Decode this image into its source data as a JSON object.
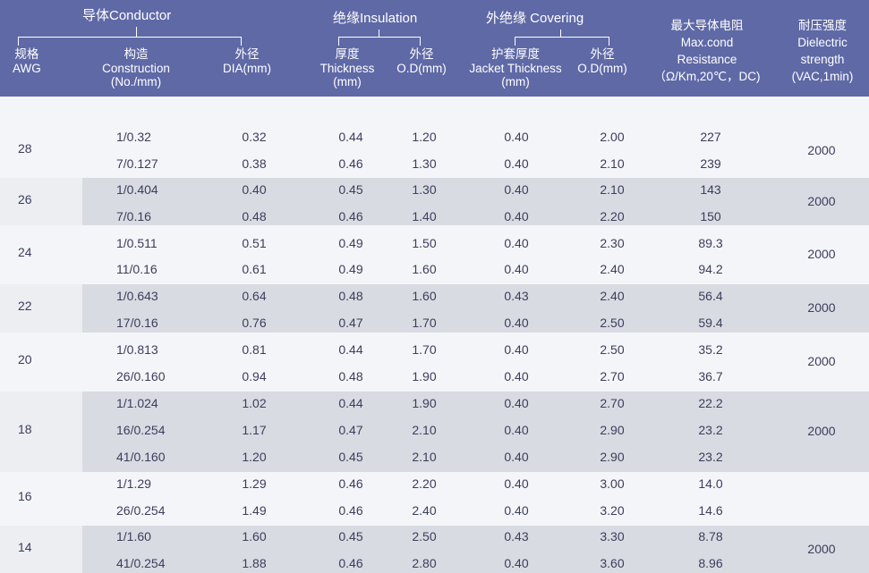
{
  "header": {
    "conductor": "导体Conductor",
    "insulation": "绝缘Insulation",
    "covering": "外绝缘 Covering",
    "awg_cn": "规格",
    "awg_en": "AWG",
    "construction_cn": "构造",
    "construction_en": "Construction",
    "construction_unit": "(No./mm)",
    "dia_cn": "外径",
    "dia_en": "DIA(mm)",
    "thickness_cn": "厚度",
    "thickness_en": "Thickness",
    "thickness_unit": "(mm)",
    "ins_od_cn": "外径",
    "ins_od_en": "O.D(mm)",
    "jacket_cn": "护套厚度",
    "jacket_en": "Jacket Thickness",
    "jacket_unit": "(mm)",
    "cov_od_cn": "外径",
    "cov_od_en": "O.D(mm)",
    "res_cn": "最大导体电阻",
    "res_en1": "Max.cond",
    "res_en2": "Resistance",
    "res_unit": "（Ω/Km,20℃，DC)",
    "die_cn": "耐压强度",
    "die_en1": "Dielectric",
    "die_en2": "strength",
    "die_unit": "(VAC,1min)"
  },
  "groups": [
    {
      "awg": "28",
      "dielectric": "2000",
      "rows": [
        {
          "construction": "1/0.32",
          "dia": "0.32",
          "thickness": "0.44",
          "ins_od": "1.20",
          "jacket": "0.40",
          "cov_od": "2.00",
          "resistance": "227"
        },
        {
          "construction": "7/0.127",
          "dia": "0.38",
          "thickness": "0.46",
          "ins_od": "1.30",
          "jacket": "0.40",
          "cov_od": "2.10",
          "resistance": "239"
        }
      ]
    },
    {
      "awg": "26",
      "dielectric": "2000",
      "rows": [
        {
          "construction": "1/0.404",
          "dia": "0.40",
          "thickness": "0.45",
          "ins_od": "1.30",
          "jacket": "0.40",
          "cov_od": "2.10",
          "resistance": "143"
        },
        {
          "construction": "7/0.16",
          "dia": "0.48",
          "thickness": "0.46",
          "ins_od": "1.40",
          "jacket": "0.40",
          "cov_od": "2.20",
          "resistance": "150"
        }
      ]
    },
    {
      "awg": "24",
      "dielectric": "2000",
      "rows": [
        {
          "construction": "1/0.511",
          "dia": "0.51",
          "thickness": "0.49",
          "ins_od": "1.50",
          "jacket": "0.40",
          "cov_od": "2.30",
          "resistance": "89.3"
        },
        {
          "construction": "11/0.16",
          "dia": "0.61",
          "thickness": "0.49",
          "ins_od": "1.60",
          "jacket": "0.40",
          "cov_od": "2.40",
          "resistance": "94.2"
        }
      ]
    },
    {
      "awg": "22",
      "dielectric": "2000",
      "rows": [
        {
          "construction": "1/0.643",
          "dia": "0.64",
          "thickness": "0.48",
          "ins_od": "1.60",
          "jacket": "0.43",
          "cov_od": "2.40",
          "resistance": "56.4"
        },
        {
          "construction": "17/0.16",
          "dia": "0.76",
          "thickness": "0.47",
          "ins_od": "1.70",
          "jacket": "0.40",
          "cov_od": "2.50",
          "resistance": "59.4"
        }
      ]
    },
    {
      "awg": "20",
      "dielectric": "2000",
      "rows": [
        {
          "construction": "1/0.813",
          "dia": "0.81",
          "thickness": "0.44",
          "ins_od": "1.70",
          "jacket": "0.40",
          "cov_od": "2.50",
          "resistance": "35.2"
        },
        {
          "construction": "26/0.160",
          "dia": "0.94",
          "thickness": "0.48",
          "ins_od": "1.90",
          "jacket": "0.40",
          "cov_od": "2.70",
          "resistance": "36.7"
        }
      ]
    },
    {
      "awg": "18",
      "dielectric": "2000",
      "rows": [
        {
          "construction": "1/1.024",
          "dia": "1.02",
          "thickness": "0.44",
          "ins_od": "1.90",
          "jacket": "0.40",
          "cov_od": "2.70",
          "resistance": "22.2"
        },
        {
          "construction": "16/0.254",
          "dia": "1.17",
          "thickness": "0.47",
          "ins_od": "2.10",
          "jacket": "0.40",
          "cov_od": "2.90",
          "resistance": "23.2"
        },
        {
          "construction": "41/0.160",
          "dia": "1.20",
          "thickness": "0.45",
          "ins_od": "2.10",
          "jacket": "0.40",
          "cov_od": "2.90",
          "resistance": "23.2"
        }
      ]
    },
    {
      "awg": "16",
      "dielectric": "",
      "rows": [
        {
          "construction": "1/1.29",
          "dia": "1.29",
          "thickness": "0.46",
          "ins_od": "2.20",
          "jacket": "0.40",
          "cov_od": "3.00",
          "resistance": "14.0"
        },
        {
          "construction": "26/0.254",
          "dia": "1.49",
          "thickness": "0.46",
          "ins_od": "2.40",
          "jacket": "0.40",
          "cov_od": "3.20",
          "resistance": "14.6"
        }
      ]
    },
    {
      "awg": "14",
      "dielectric": "2000",
      "rows": [
        {
          "construction": "1/1.60",
          "dia": "1.60",
          "thickness": "0.45",
          "ins_od": "2.50",
          "jacket": "0.43",
          "cov_od": "3.30",
          "resistance": "8.78"
        },
        {
          "construction": "41/0.254",
          "dia": "1.88",
          "thickness": "0.46",
          "ins_od": "2.80",
          "jacket": "0.40",
          "cov_od": "3.60",
          "resistance": "8.96"
        }
      ]
    }
  ]
}
